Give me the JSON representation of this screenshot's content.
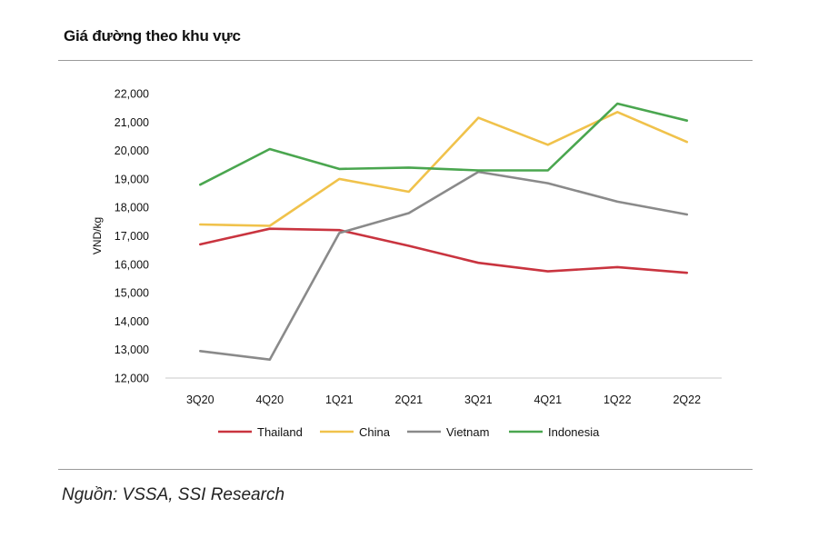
{
  "title": "Giá đường theo khu vực",
  "source": "Nguồn: VSSA, SSI Research",
  "chart_data": {
    "type": "line",
    "title": "Giá đường theo khu vực",
    "xlabel": "",
    "ylabel": "VND/kg",
    "ylim": [
      12000,
      22000
    ],
    "yticks": [
      12000,
      13000,
      14000,
      15000,
      16000,
      17000,
      18000,
      19000,
      20000,
      21000,
      22000
    ],
    "ytick_labels": [
      "12,000",
      "13,000",
      "14,000",
      "15,000",
      "16,000",
      "17,000",
      "18,000",
      "19,000",
      "20,000",
      "21,000",
      "22,000"
    ],
    "grid": false,
    "legend_position": "bottom",
    "categories": [
      "3Q20",
      "4Q20",
      "1Q21",
      "2Q21",
      "3Q21",
      "4Q21",
      "1Q22",
      "2Q22"
    ],
    "series": [
      {
        "name": "Thailand",
        "color": "#c9343f",
        "values": [
          16700,
          17250,
          17200,
          16650,
          16050,
          15750,
          15900,
          15700
        ]
      },
      {
        "name": "China",
        "color": "#f0c24b",
        "values": [
          17400,
          17350,
          19000,
          18550,
          21150,
          20200,
          21350,
          20300
        ]
      },
      {
        "name": "Vietnam",
        "color": "#8a8a8a",
        "values": [
          12950,
          12650,
          17100,
          17800,
          19250,
          18850,
          18200,
          17750
        ]
      },
      {
        "name": "Indonesia",
        "color": "#4aa64f",
        "values": [
          18800,
          20050,
          19350,
          19400,
          19300,
          19300,
          21650,
          21050
        ]
      }
    ]
  }
}
